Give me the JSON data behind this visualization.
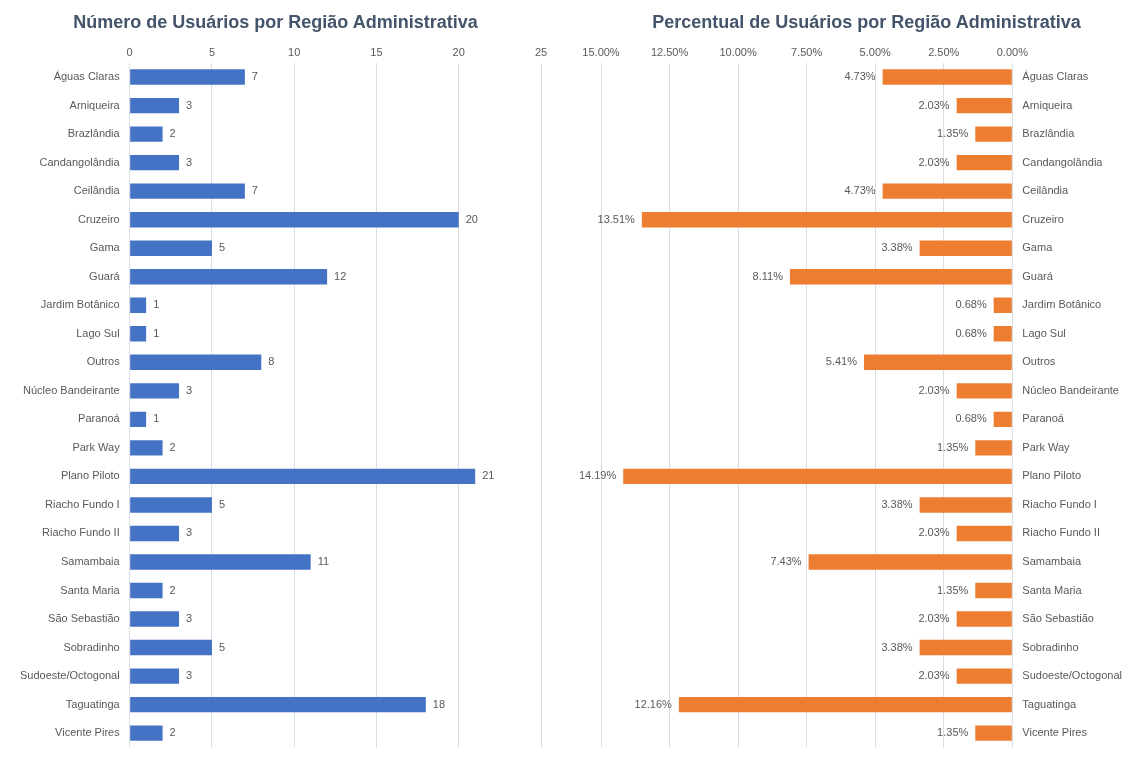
{
  "chart_data": [
    {
      "type": "bar",
      "orientation": "horizontal",
      "title": "Número de Usuários por Região Administrativa",
      "categories": [
        "Águas Claras",
        "Arniqueira",
        "Brazlândia",
        "Candangolândia",
        "Ceilândia",
        "Cruzeiro",
        "Gama",
        "Guará",
        "Jardim Botânico",
        "Lago Sul",
        "Outros",
        "Núcleo Bandeirante",
        "Paranoá",
        "Park Way",
        "Plano Piloto",
        "Riacho Fundo I",
        "Riacho Fundo II",
        "Samambaia",
        "Santa Maria",
        "São Sebastião",
        "Sobradinho",
        "Sudoeste/Octogonal",
        "Taguatinga",
        "Vicente Pires"
      ],
      "values": [
        7,
        3,
        2,
        3,
        7,
        20,
        5,
        12,
        1,
        1,
        8,
        3,
        1,
        2,
        21,
        5,
        3,
        11,
        2,
        3,
        5,
        3,
        18,
        2
      ],
      "color": "#4472c4",
      "xlim": [
        0,
        25
      ],
      "xticks": [
        0,
        5,
        10,
        15,
        20,
        25
      ],
      "grid": "x",
      "data_labels": true,
      "legend": false
    },
    {
      "type": "bar",
      "orientation": "horizontal",
      "title": "Percentual de Usuários por Região Administrativa",
      "categories": [
        "Águas Claras",
        "Arniqueira",
        "Brazlândia",
        "Candangolândia",
        "Ceilândia",
        "Cruzeiro",
        "Gama",
        "Guará",
        "Jardim Botânico",
        "Lago Sul",
        "Outros",
        "Núcleo Bandeirante",
        "Paranoá",
        "Park Way",
        "Plano Piloto",
        "Riacho Fundo I",
        "Riacho Fundo II",
        "Samambaia",
        "Santa Maria",
        "São Sebastião",
        "Sobradinho",
        "Sudoeste/Octogonal",
        "Taguatinga",
        "Vicente Pires"
      ],
      "values": [
        4.73,
        2.03,
        1.35,
        2.03,
        4.73,
        13.51,
        3.38,
        8.11,
        0.68,
        0.68,
        5.41,
        2.03,
        0.68,
        1.35,
        14.19,
        3.38,
        2.03,
        7.43,
        1.35,
        2.03,
        3.38,
        2.03,
        12.16,
        1.35
      ],
      "value_labels": [
        "4.73%",
        "2.03%",
        "1.35%",
        "2.03%",
        "4.73%",
        "13.51%",
        "3.38%",
        "8.11%",
        "0.68%",
        "0.68%",
        "5.41%",
        "2.03%",
        "0.68%",
        "1.35%",
        "14.19%",
        "3.38%",
        "2.03%",
        "7.43%",
        "1.35%",
        "2.03%",
        "3.38%",
        "2.03%",
        "12.16%",
        "1.35%"
      ],
      "color": "#ed7d31",
      "xlim": [
        15,
        0
      ],
      "xticks": [
        {
          "value": 15,
          "label": "15.00%"
        },
        {
          "value": 12.5,
          "label": "12.50%"
        },
        {
          "value": 10,
          "label": "10.00%"
        },
        {
          "value": 7.5,
          "label": "7.50%"
        },
        {
          "value": 5,
          "label": "5.00%"
        },
        {
          "value": 2.5,
          "label": "2.50%"
        },
        {
          "value": 0,
          "label": "0.00%"
        }
      ],
      "grid": "x",
      "legend": false
    }
  ]
}
